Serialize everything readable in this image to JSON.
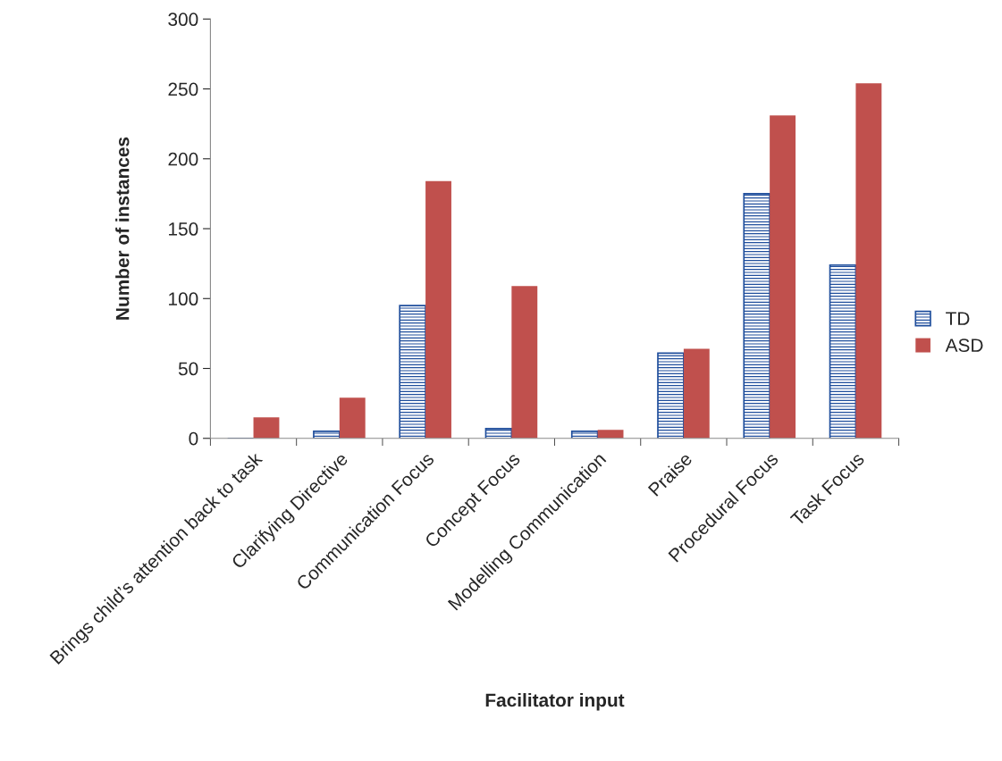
{
  "chart_data": {
    "type": "bar",
    "xlabel": "Facilitator input",
    "ylabel": "Number of instances",
    "categories": [
      "Brings child’s attention back to task",
      "Clarifying Directive",
      "Communication Focus",
      "Concept Focus",
      "Modelling Communication",
      "Praise",
      "Procedural Focus",
      "Task Focus"
    ],
    "series": [
      {
        "name": "TD",
        "color": "#1f4e9c",
        "values": [
          0,
          5,
          95,
          7,
          5,
          61,
          175,
          124
        ]
      },
      {
        "name": "ASD",
        "color": "#c0504d",
        "values": [
          15,
          29,
          184,
          109,
          6,
          64,
          231,
          254
        ]
      }
    ],
    "ylim": [
      0,
      300
    ],
    "yticks": [
      0,
      50,
      100,
      150,
      200,
      250,
      300
    ],
    "grid": false,
    "legend": "right"
  }
}
